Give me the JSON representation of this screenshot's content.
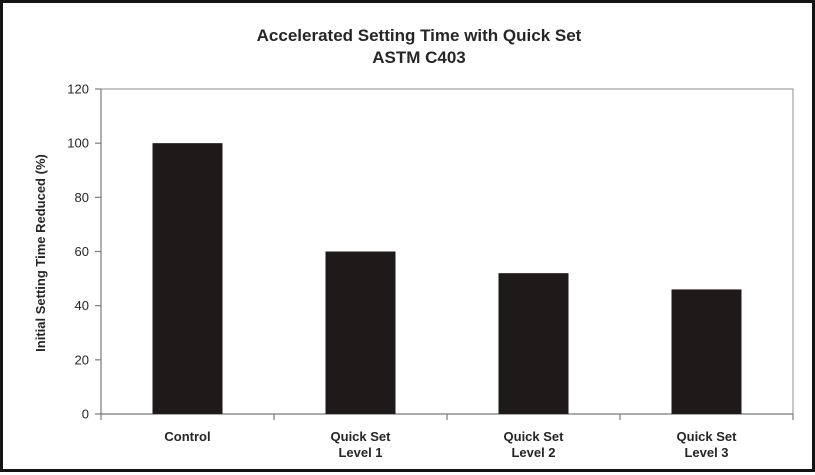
{
  "chart_data": {
    "type": "bar",
    "title": "Accelerated Setting Time with Quick Set",
    "subtitle": "ASTM C403",
    "ylabel": "Initial Setting Time Reduced (%)",
    "xlabel": "",
    "ylim": [
      0,
      120
    ],
    "yticks": [
      0,
      20,
      40,
      60,
      80,
      100,
      120
    ],
    "categories": [
      [
        "Control"
      ],
      [
        "Quick Set",
        "Level 1"
      ],
      [
        "Quick Set",
        "Level 2"
      ],
      [
        "Quick Set",
        "Level 3"
      ]
    ],
    "values": [
      100,
      60,
      52,
      46
    ],
    "bar_color": "#1e1a19",
    "grid": false,
    "legend": "none"
  }
}
